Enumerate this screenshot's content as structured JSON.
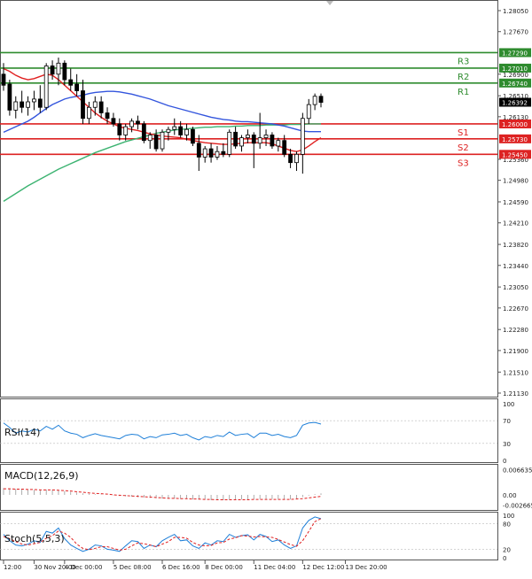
{
  "chart_data": {
    "type": "candlestick",
    "instrument_note": "GBP/USD style hourly chart",
    "price_axis": {
      "ylim": [
        1.2113,
        1.2805
      ],
      "ticks": [
        "1.28050",
        "1.27670",
        "1.26900",
        "1.26510",
        "1.26130",
        "1.25360",
        "1.24980",
        "1.24590",
        "1.24210",
        "1.23820",
        "1.23440",
        "1.23050",
        "1.22670",
        "1.22280",
        "1.21900",
        "1.21510",
        "1.21130"
      ]
    },
    "x_axis": {
      "labels": [
        "12:00",
        "30 Nov 20:00",
        "4 Dec 00:00",
        "5 Dec 08:00",
        "6 Dec 16:00",
        "8 Dec 00:00",
        "11 Dec 04:00",
        "12 Dec 12:00",
        "13 Dec 20:00"
      ],
      "label_bar_index": [
        0,
        5,
        10,
        18,
        26,
        33,
        41,
        49,
        56
      ]
    },
    "levels": [
      {
        "name": "R3",
        "value": 1.2729,
        "label": "1.27290",
        "color": "#2e8b2e"
      },
      {
        "name": "R2",
        "value": 1.2701,
        "label": "1.27010",
        "color": "#2e8b2e"
      },
      {
        "name": "R1",
        "value": 1.2674,
        "label": "1.26740",
        "color": "#2e8b2e"
      },
      {
        "name": "S1",
        "value": 1.26,
        "label": "1.26000",
        "color": "#dd2222"
      },
      {
        "name": "S2",
        "value": 1.2573,
        "label": "1.25730",
        "color": "#dd2222"
      },
      {
        "name": "S3",
        "value": 1.2545,
        "label": "1.25450",
        "color": "#dd2222"
      }
    ],
    "current_price": {
      "value": 1.26392,
      "label": "1.26392"
    },
    "candles": [
      [
        1.269,
        1.271,
        1.266,
        1.267
      ],
      [
        1.2672,
        1.268,
        1.2615,
        1.2625
      ],
      [
        1.2625,
        1.265,
        1.261,
        1.264
      ],
      [
        1.264,
        1.266,
        1.262,
        1.263
      ],
      [
        1.263,
        1.265,
        1.2615,
        1.264
      ],
      [
        1.264,
        1.266,
        1.2625,
        1.2645
      ],
      [
        1.2645,
        1.267,
        1.262,
        1.263
      ],
      [
        1.263,
        1.271,
        1.2625,
        1.2705
      ],
      [
        1.2705,
        1.2715,
        1.268,
        1.269
      ],
      [
        1.269,
        1.272,
        1.267,
        1.271
      ],
      [
        1.271,
        1.2715,
        1.267,
        1.268
      ],
      [
        1.268,
        1.27,
        1.266,
        1.267
      ],
      [
        1.2672,
        1.269,
        1.265,
        1.266
      ],
      [
        1.266,
        1.268,
        1.26,
        1.261
      ],
      [
        1.261,
        1.264,
        1.26,
        1.263
      ],
      [
        1.263,
        1.265,
        1.2615,
        1.264
      ],
      [
        1.264,
        1.265,
        1.261,
        1.262
      ],
      [
        1.262,
        1.263,
        1.26,
        1.261
      ],
      [
        1.261,
        1.262,
        1.2595,
        1.26
      ],
      [
        1.26,
        1.261,
        1.257,
        1.258
      ],
      [
        1.258,
        1.26,
        1.257,
        1.2595
      ],
      [
        1.2595,
        1.261,
        1.2585,
        1.2605
      ],
      [
        1.2605,
        1.2615,
        1.259,
        1.26
      ],
      [
        1.26,
        1.2605,
        1.2565,
        1.257
      ],
      [
        1.257,
        1.2585,
        1.2555,
        1.258
      ],
      [
        1.258,
        1.259,
        1.255,
        1.2555
      ],
      [
        1.2555,
        1.259,
        1.255,
        1.2585
      ],
      [
        1.2585,
        1.2595,
        1.257,
        1.259
      ],
      [
        1.259,
        1.261,
        1.258,
        1.2595
      ],
      [
        1.2595,
        1.2605,
        1.2575,
        1.258
      ],
      [
        1.258,
        1.26,
        1.257,
        1.259
      ],
      [
        1.259,
        1.2595,
        1.256,
        1.2565
      ],
      [
        1.2565,
        1.258,
        1.2515,
        1.254
      ],
      [
        1.254,
        1.256,
        1.253,
        1.2555
      ],
      [
        1.2555,
        1.2565,
        1.253,
        1.254
      ],
      [
        1.254,
        1.256,
        1.2535,
        1.255
      ],
      [
        1.255,
        1.2565,
        1.254,
        1.2545
      ],
      [
        1.2545,
        1.259,
        1.254,
        1.2585
      ],
      [
        1.2585,
        1.2595,
        1.2555,
        1.256
      ],
      [
        1.256,
        1.258,
        1.255,
        1.2575
      ],
      [
        1.2575,
        1.259,
        1.2565,
        1.258
      ],
      [
        1.258,
        1.2585,
        1.252,
        1.2565
      ],
      [
        1.2565,
        1.262,
        1.2555,
        1.2575
      ],
      [
        1.2575,
        1.259,
        1.256,
        1.258
      ],
      [
        1.258,
        1.2585,
        1.2555,
        1.256
      ],
      [
        1.256,
        1.2575,
        1.255,
        1.257
      ],
      [
        1.257,
        1.258,
        1.254,
        1.2545
      ],
      [
        1.2545,
        1.2555,
        1.252,
        1.253
      ],
      [
        1.253,
        1.255,
        1.2515,
        1.2545
      ],
      [
        1.2545,
        1.262,
        1.251,
        1.261
      ],
      [
        1.261,
        1.2645,
        1.26,
        1.2635
      ],
      [
        1.2635,
        1.2655,
        1.2625,
        1.265
      ],
      [
        1.265,
        1.2655,
        1.263,
        1.2639
      ]
    ],
    "ma_red": [
      1.27,
      1.2695,
      1.2688,
      1.2683,
      1.268,
      1.2682,
      1.2686,
      1.269,
      1.2688,
      1.268,
      1.267,
      1.266,
      1.265,
      1.264,
      1.263,
      1.262,
      1.2612,
      1.2605,
      1.26,
      1.2595,
      1.2592,
      1.259,
      1.2588,
      1.2585,
      1.2582,
      1.258,
      1.2578,
      1.2577,
      1.2576,
      1.2575,
      1.2572,
      1.257,
      1.2568,
      1.2566,
      1.2565,
      1.2564,
      1.2563,
      1.2563,
      1.2564,
      1.2565,
      1.2566,
      1.2566,
      1.2566,
      1.2566,
      1.2564,
      1.256,
      1.2556,
      1.2552,
      1.255,
      1.2553,
      1.256,
      1.2568,
      1.2575
    ],
    "ma_blue": [
      1.2585,
      1.259,
      1.2595,
      1.26,
      1.2605,
      1.2612,
      1.262,
      1.2628,
      1.2635,
      1.264,
      1.2645,
      1.2648,
      1.265,
      1.2652,
      1.2655,
      1.2657,
      1.2658,
      1.2659,
      1.2659,
      1.2658,
      1.2656,
      1.2654,
      1.2651,
      1.2648,
      1.2645,
      1.2641,
      1.2637,
      1.2633,
      1.263,
      1.2627,
      1.2624,
      1.2621,
      1.2618,
      1.2615,
      1.2612,
      1.261,
      1.2608,
      1.2607,
      1.2605,
      1.2604,
      1.2604,
      1.2603,
      1.2602,
      1.2601,
      1.26,
      1.2598,
      1.2596,
      1.2593,
      1.259,
      1.2587,
      1.2586,
      1.2586,
      1.2586
    ],
    "ma_green": [
      1.246,
      1.2467,
      1.2474,
      1.2481,
      1.2488,
      1.2494,
      1.25,
      1.2506,
      1.2512,
      1.2518,
      1.2523,
      1.2528,
      1.2533,
      1.2538,
      1.2543,
      1.2548,
      1.2552,
      1.2556,
      1.256,
      1.2564,
      1.2568,
      1.2571,
      1.2574,
      1.2577,
      1.258,
      1.2583,
      1.2585,
      1.2587,
      1.2589,
      1.259,
      1.2591,
      1.2592,
      1.2593,
      1.2594,
      1.2594,
      1.2595,
      1.2595,
      1.2595,
      1.2596,
      1.2596,
      1.2597,
      1.2597,
      1.2597,
      1.2598,
      1.2598,
      1.2598,
      1.2598,
      1.2599,
      1.2599,
      1.2599,
      1.26,
      1.26,
      1.26
    ],
    "rsi": {
      "label": "RSI(14)",
      "ylim": [
        0,
        100
      ],
      "ticks": [
        "100",
        "70",
        "30",
        "0"
      ],
      "values": [
        66,
        58,
        48,
        52,
        50,
        55,
        52,
        60,
        55,
        62,
        52,
        48,
        46,
        40,
        44,
        47,
        44,
        42,
        40,
        38,
        44,
        46,
        45,
        38,
        42,
        40,
        45,
        46,
        48,
        44,
        46,
        40,
        36,
        42,
        40,
        44,
        42,
        50,
        44,
        46,
        47,
        40,
        48,
        48,
        44,
        46,
        42,
        40,
        44,
        62,
        66,
        67,
        64
      ]
    },
    "macd": {
      "label": "MACD(12,26,9)",
      "ticks": [
        "0.006635",
        "0.00",
        "-0.002665"
      ],
      "ylim": [
        -0.0035,
        0.0072
      ],
      "hist": [
        0.0018,
        0.0017,
        0.0016,
        0.0015,
        0.0014,
        0.0013,
        0.0013,
        0.0014,
        0.0013,
        0.0012,
        0.001,
        0.0008,
        0.0006,
        0.0004,
        0.0003,
        0.0002,
        0.0001,
        0.0,
        -0.0001,
        -0.0003,
        -0.0004,
        -0.0005,
        -0.0006,
        -0.0007,
        -0.0008,
        -0.0009,
        -0.001,
        -0.001,
        -0.001,
        -0.0011,
        -0.0011,
        -0.0012,
        -0.0013,
        -0.0013,
        -0.0014,
        -0.0014,
        -0.0014,
        -0.0013,
        -0.0013,
        -0.0012,
        -0.0012,
        -0.0012,
        -0.0011,
        -0.0011,
        -0.0011,
        -0.0011,
        -0.0012,
        -0.0012,
        -0.0011,
        -0.0006,
        -0.0002,
        0.0002,
        0.0004
      ],
      "signal": [
        0.0016,
        0.0016,
        0.0015,
        0.0015,
        0.0014,
        0.0014,
        0.0013,
        0.0013,
        0.0013,
        0.0012,
        0.0011,
        0.001,
        0.0008,
        0.0007,
        0.0005,
        0.0004,
        0.0003,
        0.0002,
        0.0,
        -0.0001,
        -0.0002,
        -0.0003,
        -0.0004,
        -0.0005,
        -0.0006,
        -0.0007,
        -0.0008,
        -0.0009,
        -0.0009,
        -0.001,
        -0.001,
        -0.0011,
        -0.0011,
        -0.0012,
        -0.0012,
        -0.0013,
        -0.0013,
        -0.0013,
        -0.0013,
        -0.0013,
        -0.0013,
        -0.0012,
        -0.0012,
        -0.0012,
        -0.0012,
        -0.0012,
        -0.0012,
        -0.0012,
        -0.0011,
        -0.001,
        -0.0008,
        -0.0006,
        -0.0004
      ]
    },
    "stoch": {
      "label": "Stoch(5,5,3)",
      "ylim": [
        0,
        100
      ],
      "ticks": [
        "100",
        "80",
        "20",
        "0"
      ],
      "k": [
        55,
        40,
        30,
        28,
        32,
        40,
        36,
        62,
        58,
        70,
        45,
        30,
        22,
        15,
        20,
        30,
        28,
        20,
        18,
        15,
        28,
        40,
        38,
        22,
        30,
        26,
        40,
        48,
        55,
        40,
        42,
        28,
        22,
        35,
        30,
        40,
        38,
        55,
        48,
        52,
        54,
        42,
        55,
        50,
        38,
        42,
        30,
        22,
        28,
        70,
        88,
        96,
        92
      ],
      "d": [
        50,
        45,
        38,
        32,
        30,
        33,
        36,
        46,
        52,
        63,
        58,
        48,
        32,
        22,
        19,
        22,
        26,
        26,
        22,
        18,
        20,
        28,
        35,
        33,
        30,
        26,
        32,
        38,
        48,
        48,
        46,
        36,
        30,
        28,
        29,
        35,
        36,
        44,
        47,
        52,
        51,
        49,
        50,
        49,
        48,
        43,
        37,
        31,
        27,
        40,
        62,
        85,
        92
      ]
    }
  }
}
